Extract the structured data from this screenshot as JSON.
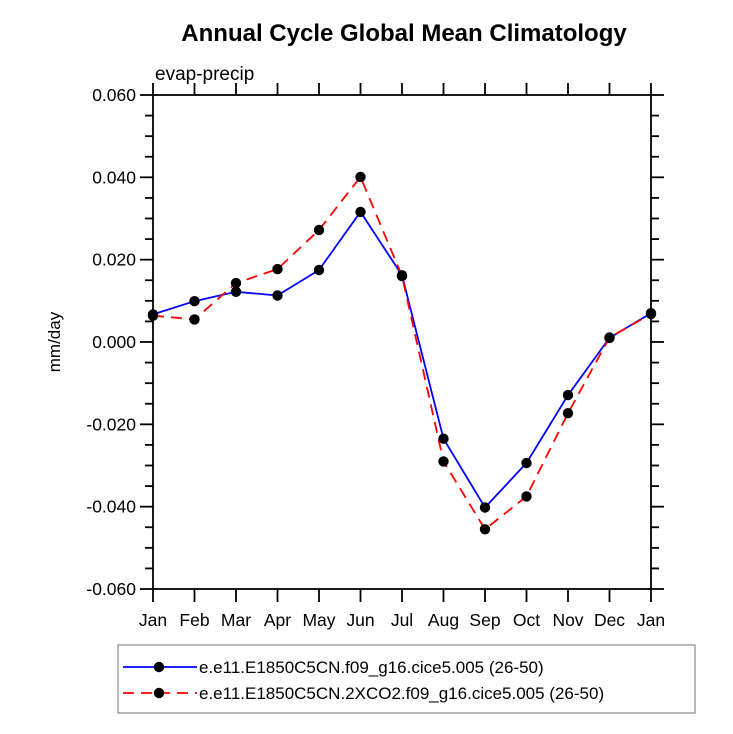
{
  "page": {
    "background": "#ffffff",
    "text_color": "#000000"
  },
  "chart_data": {
    "type": "line",
    "title": "Annual Cycle Global Mean Climatology",
    "subtitle": "evap-precip",
    "ylabel": "mm/day",
    "xlabel": "",
    "categories": [
      "Jan",
      "Feb",
      "Mar",
      "Apr",
      "May",
      "Jun",
      "Jul",
      "Aug",
      "Sep",
      "Oct",
      "Nov",
      "Dec",
      "Jan"
    ],
    "ylim": [
      -0.06,
      0.06
    ],
    "ytick_major_values": [
      0.06,
      0.04,
      0.02,
      0.0,
      -0.02,
      -0.04,
      -0.06
    ],
    "ytick_major_labels": [
      "0.060",
      "0.040",
      "0.020",
      "0.000",
      "-0.020",
      "-0.040",
      "-0.060"
    ],
    "ytick_minor_step": 0.005,
    "grid": false,
    "legend_position": "bottom",
    "frame_color": "#000000",
    "legend_border_color": "#8a8a8a",
    "series": [
      {
        "name": "e.e11.E1850C5CN.f09_g16.cice5.005 (26-50)",
        "color": "#0000ff",
        "style": "solid",
        "marker": "circle",
        "marker_color": "#000000",
        "values": [
          0.0067,
          0.0099,
          0.0122,
          0.0113,
          0.0175,
          0.0316,
          0.0162,
          -0.0235,
          -0.0402,
          -0.0294,
          -0.0129,
          0.001,
          0.007
        ]
      },
      {
        "name": "e.e11.E1850C5CN.2XCO2.f09_g16.cice5.005 (26-50)",
        "color": "#ff0000",
        "style": "dashed",
        "marker": "circle",
        "marker_color": "#000000",
        "values": [
          0.0064,
          0.0055,
          0.0143,
          0.0177,
          0.0272,
          0.0401,
          0.016,
          -0.029,
          -0.0455,
          -0.0375,
          -0.0173,
          0.0011,
          0.0068
        ]
      }
    ]
  }
}
